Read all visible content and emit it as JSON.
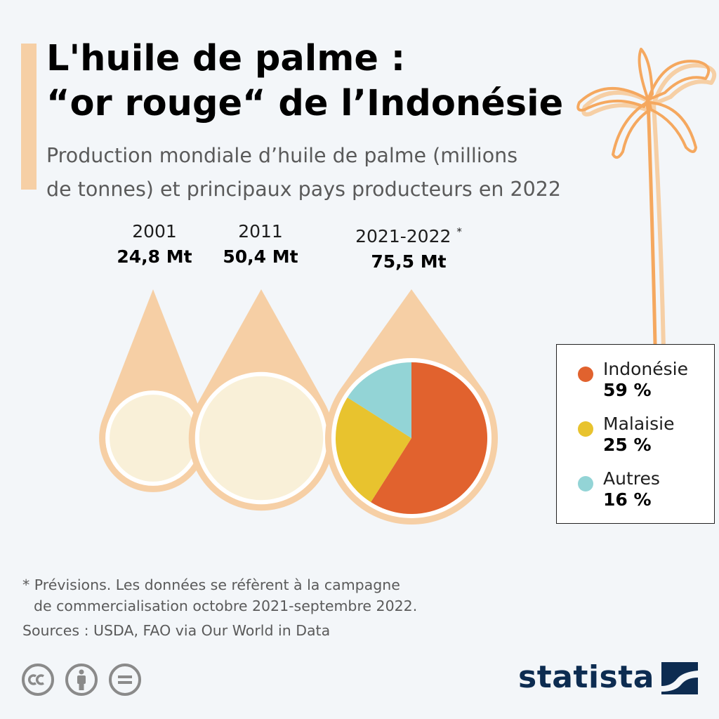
{
  "title_line1": "L'huile de palme :",
  "title_line2": "“or rouge“ de l’Indonésie",
  "subtitle_line1": "Production mondiale d’huile de palme (millions",
  "subtitle_line2": "de tonnes) et principaux pays producteurs en 2022",
  "colors": {
    "indonesia": "#e1622e",
    "malaysia": "#e8c32e",
    "others": "#93d4d6",
    "drop": "#f6cfa5",
    "circle": "#f9f0d8",
    "palm": "#f5a85f",
    "brand": "#0d2c51"
  },
  "chart_data": {
    "type": "pie",
    "bubbles": [
      {
        "label": "2001",
        "value": 24.8,
        "value_text": "24,8 Mt",
        "unit": "Mt"
      },
      {
        "label": "2011",
        "value": 50.4,
        "value_text": "50,4 Mt",
        "unit": "Mt"
      },
      {
        "label": "2021-2022",
        "marker": "*",
        "value": 75.5,
        "value_text": "75,5 Mt",
        "unit": "Mt"
      }
    ],
    "pie": {
      "of": "2021-2022",
      "slices": [
        {
          "name": "Indonésie",
          "value": 59,
          "value_text": "59 %",
          "color": "#e1622e"
        },
        {
          "name": "Malaisie",
          "value": 25,
          "value_text": "25 %",
          "color": "#e8c32e"
        },
        {
          "name": "Autres",
          "value": 16,
          "value_text": "16 %",
          "color": "#93d4d6"
        }
      ]
    },
    "legend_position": "right"
  },
  "footnote_line1": "* Prévisions. Les données se réfèrent à la campagne",
  "footnote_line2": "de commercialisation octobre 2021-septembre 2022.",
  "source": "Sources : USDA, FAO via Our World in Data",
  "license_icons": [
    "creative-commons-icon",
    "attribution-icon",
    "no-derivatives-icon"
  ],
  "brand": "statista"
}
